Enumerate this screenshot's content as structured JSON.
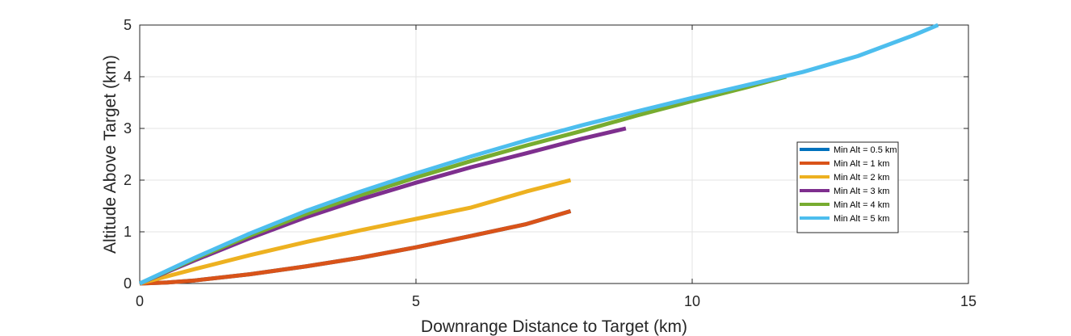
{
  "chart_data": {
    "type": "line",
    "title": "",
    "xlabel": "Downrange Distance to Target (km)",
    "ylabel": "Altitude Above Target (km)",
    "xlim": [
      0,
      15
    ],
    "ylim": [
      0,
      5
    ],
    "xticks": [
      0,
      5,
      10,
      15
    ],
    "yticks": [
      0,
      1,
      2,
      3,
      4,
      5
    ],
    "grid": true,
    "legend_position": "right",
    "series": [
      {
        "name": "Min Alt = 0.5 km",
        "color": "#0072BD",
        "points": [
          [
            0,
            0
          ],
          [
            0.5,
            0.02
          ],
          [
            1,
            0.06
          ],
          [
            2,
            0.18
          ],
          [
            3,
            0.33
          ],
          [
            4,
            0.5
          ],
          [
            5,
            0.7
          ],
          [
            6,
            0.92
          ],
          [
            7,
            1.15
          ],
          [
            7.8,
            1.4
          ]
        ]
      },
      {
        "name": "Min Alt = 1 km",
        "color": "#D95319",
        "points": [
          [
            0,
            0
          ],
          [
            0.5,
            0.02
          ],
          [
            1,
            0.06
          ],
          [
            2,
            0.18
          ],
          [
            3,
            0.33
          ],
          [
            4,
            0.5
          ],
          [
            5,
            0.7
          ],
          [
            6,
            0.92
          ],
          [
            7,
            1.15
          ],
          [
            7.8,
            1.4
          ]
        ]
      },
      {
        "name": "Min Alt = 2 km",
        "color": "#EDB120",
        "points": [
          [
            0,
            0
          ],
          [
            1,
            0.28
          ],
          [
            2,
            0.55
          ],
          [
            3,
            0.8
          ],
          [
            4,
            1.03
          ],
          [
            5,
            1.25
          ],
          [
            6,
            1.47
          ],
          [
            7,
            1.78
          ],
          [
            7.8,
            2.0
          ]
        ]
      },
      {
        "name": "Min Alt = 3 km",
        "color": "#7E2F8E",
        "points": [
          [
            0,
            0
          ],
          [
            1,
            0.45
          ],
          [
            2,
            0.88
          ],
          [
            3,
            1.28
          ],
          [
            4,
            1.63
          ],
          [
            5,
            1.95
          ],
          [
            6,
            2.25
          ],
          [
            7,
            2.52
          ],
          [
            8,
            2.8
          ],
          [
            8.8,
            3.0
          ]
        ]
      },
      {
        "name": "Min Alt = 4 km",
        "color": "#77AC30",
        "points": [
          [
            0,
            0
          ],
          [
            1,
            0.48
          ],
          [
            2,
            0.93
          ],
          [
            3,
            1.34
          ],
          [
            4,
            1.71
          ],
          [
            5,
            2.05
          ],
          [
            6,
            2.37
          ],
          [
            7,
            2.67
          ],
          [
            8,
            2.95
          ],
          [
            9,
            3.25
          ],
          [
            10,
            3.53
          ],
          [
            11,
            3.8
          ],
          [
            11.7,
            4.0
          ]
        ]
      },
      {
        "name": "Min Alt = 5 km",
        "color": "#4DBEEE",
        "points": [
          [
            0,
            0
          ],
          [
            1,
            0.5
          ],
          [
            2,
            0.97
          ],
          [
            3,
            1.4
          ],
          [
            4,
            1.78
          ],
          [
            5,
            2.13
          ],
          [
            6,
            2.46
          ],
          [
            7,
            2.77
          ],
          [
            8,
            3.06
          ],
          [
            9,
            3.33
          ],
          [
            10,
            3.59
          ],
          [
            11,
            3.84
          ],
          [
            12,
            4.09
          ],
          [
            13,
            4.4
          ],
          [
            14,
            4.8
          ],
          [
            14.45,
            5.0
          ]
        ]
      }
    ]
  }
}
